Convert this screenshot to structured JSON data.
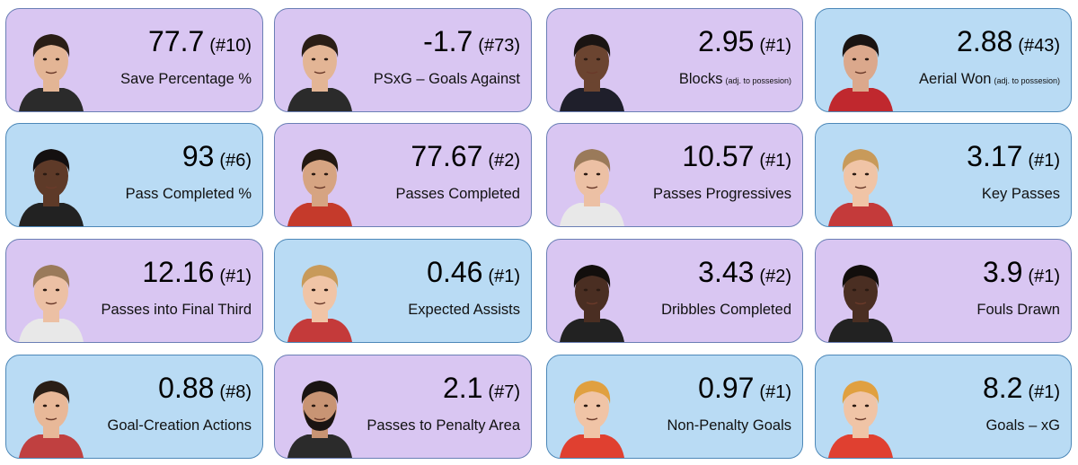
{
  "colors": {
    "purple": "#d9c6f2",
    "blue": "#b9dbf4"
  },
  "cards": [
    {
      "value": "77.7",
      "rank": "(#10)",
      "label": "Save Percentage %",
      "sub": "",
      "color": "purple",
      "icon": "player-portrait-icon",
      "skin": "#e3b595",
      "hair": "#2a1e16",
      "shirt": "#2b2b2b",
      "beard": false
    },
    {
      "value": "-1.7",
      "rank": "(#73)",
      "label": "PSxG – Goals Against",
      "sub": "",
      "color": "purple",
      "icon": "player-portrait-icon",
      "skin": "#e3b595",
      "hair": "#2a1e16",
      "shirt": "#2b2b2b",
      "beard": false
    },
    {
      "value": "2.95",
      "rank": "(#1)",
      "label": "Blocks",
      "sub": "(adj. to possesion)",
      "color": "purple",
      "icon": "player-portrait-icon",
      "skin": "#6b4430",
      "hair": "#1a1412",
      "shirt": "#1f1f2b",
      "beard": false
    },
    {
      "value": "2.88",
      "rank": "(#43)",
      "label": "Aerial Won",
      "sub": "(adj. to possesion)",
      "color": "blue",
      "icon": "player-portrait-icon",
      "skin": "#dba88c",
      "hair": "#1a1412",
      "shirt": "#c0282e",
      "beard": false
    },
    {
      "value": "93",
      "rank": "(#6)",
      "label": "Pass Completed %",
      "sub": "",
      "color": "blue",
      "icon": "player-portrait-icon",
      "skin": "#5e3a28",
      "hair": "#141010",
      "shirt": "#222222",
      "beard": false
    },
    {
      "value": "77.67",
      "rank": "(#2)",
      "label": "Passes Completed",
      "sub": "",
      "color": "purple",
      "icon": "player-portrait-icon",
      "skin": "#d6a482",
      "hair": "#231912",
      "shirt": "#c53a2b",
      "beard": false
    },
    {
      "value": "10.57",
      "rank": "(#1)",
      "label": "Passes Progressives",
      "sub": "",
      "color": "purple",
      "icon": "player-portrait-icon",
      "skin": "#ecc0a4",
      "hair": "#9a7a5a",
      "shirt": "#e8e8e8",
      "beard": false
    },
    {
      "value": "3.17",
      "rank": "(#1)",
      "label": "Key Passes",
      "sub": "",
      "color": "blue",
      "icon": "player-portrait-icon",
      "skin": "#f0c4a6",
      "hair": "#c89a5a",
      "shirt": "#c43a3a",
      "beard": false
    },
    {
      "value": "12.16",
      "rank": "(#1)",
      "label": "Passes into Final Third",
      "sub": "",
      "color": "purple",
      "icon": "player-portrait-icon",
      "skin": "#ecc0a4",
      "hair": "#9a7a5a",
      "shirt": "#e8e8e8",
      "beard": false
    },
    {
      "value": "0.46",
      "rank": "(#1)",
      "label": "Expected Assists",
      "sub": "",
      "color": "blue",
      "icon": "player-portrait-icon",
      "skin": "#f0c4a6",
      "hair": "#c89a5a",
      "shirt": "#c43a3a",
      "beard": false
    },
    {
      "value": "3.43",
      "rank": "(#2)",
      "label": "Dribbles Completed",
      "sub": "",
      "color": "purple",
      "icon": "player-portrait-icon",
      "skin": "#4a2e22",
      "hair": "#120e0c",
      "shirt": "#222222",
      "beard": false
    },
    {
      "value": "3.9",
      "rank": "(#1)",
      "label": "Fouls Drawn",
      "sub": "",
      "color": "purple",
      "icon": "player-portrait-icon",
      "skin": "#4a2e22",
      "hair": "#120e0c",
      "shirt": "#222222",
      "beard": false
    },
    {
      "value": "0.88",
      "rank": "(#8)",
      "label": "Goal-Creation Actions",
      "sub": "",
      "color": "blue",
      "icon": "player-portrait-icon",
      "skin": "#e8b898",
      "hair": "#2a1e16",
      "shirt": "#c04040",
      "beard": false
    },
    {
      "value": "2.1",
      "rank": "(#7)",
      "label": "Passes to Penalty Area",
      "sub": "",
      "color": "purple",
      "icon": "player-portrait-icon",
      "skin": "#c89474",
      "hair": "#1a1412",
      "shirt": "#2b2b2b",
      "beard": true
    },
    {
      "value": "0.97",
      "rank": "(#1)",
      "label": "Non-Penalty Goals",
      "sub": "",
      "color": "blue",
      "icon": "player-portrait-icon",
      "skin": "#f0c4a6",
      "hair": "#e0a040",
      "shirt": "#e04030",
      "beard": false
    },
    {
      "value": "8.2",
      "rank": "(#1)",
      "label": "Goals – xG",
      "sub": "",
      "color": "blue",
      "icon": "player-portrait-icon",
      "skin": "#f0c4a6",
      "hair": "#e0a040",
      "shirt": "#e04030",
      "beard": false
    }
  ]
}
